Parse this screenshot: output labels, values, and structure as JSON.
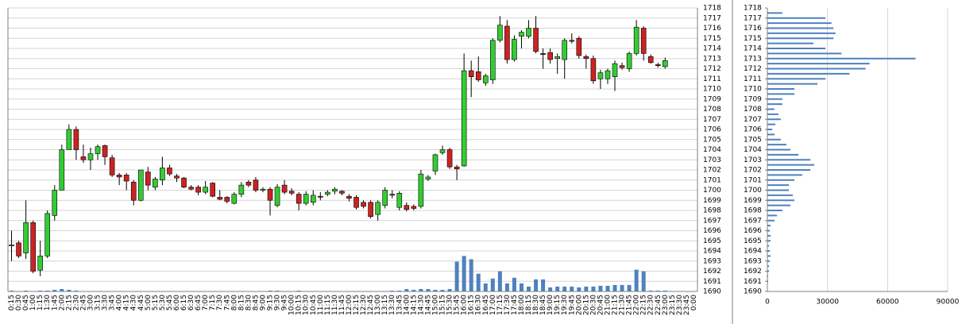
{
  "chart_data": [
    {
      "type": "candlestick",
      "categories": [
        "0:15",
        "0:30",
        "0:45",
        "1:00",
        "1:15",
        "1:30",
        "1:45",
        "2:00",
        "2:15",
        "2:30",
        "2:45",
        "3:00",
        "3:15",
        "3:30",
        "3:45",
        "4:00",
        "4:15",
        "4:30",
        "4:45",
        "5:00",
        "5:15",
        "5:30",
        "5:45",
        "6:00",
        "6:15",
        "6:30",
        "6:45",
        "7:00",
        "7:15",
        "7:30",
        "7:45",
        "8:00",
        "8:15",
        "8:30",
        "8:45",
        "9:00",
        "9:15",
        "9:30",
        "9:45",
        "10:00",
        "10:15",
        "10:30",
        "10:45",
        "11:00",
        "11:15",
        "11:30",
        "11:45",
        "12:00",
        "12:15",
        "12:30",
        "12:45",
        "13:00",
        "13:15",
        "13:30",
        "13:45",
        "14:00",
        "14:15",
        "14:30",
        "14:45",
        "15:00",
        "15:15",
        "15:30",
        "15:45",
        "16:00",
        "16:15",
        "16:30",
        "16:45",
        "17:00",
        "17:15",
        "17:30",
        "17:45",
        "18:00",
        "18:15",
        "18:30",
        "18:45",
        "19:00",
        "19:15",
        "19:30",
        "19:45",
        "20:00",
        "20:15",
        "20:30",
        "20:45",
        "21:00",
        "21:15",
        "21:30",
        "21:45",
        "22:00",
        "22:15",
        "22:30",
        "22:45",
        "23:00",
        "23:15",
        "23:30",
        "23:45",
        "0:00"
      ],
      "open": [
        1694.5,
        1694.8,
        1693.8,
        1696.8,
        1692.1,
        1693.5,
        1697.5,
        1700,
        1704,
        1706,
        1703.3,
        1703,
        1703.6,
        1704.4,
        1703.2,
        1701.5,
        1701.5,
        1700.8,
        1699,
        1701.8,
        1700.3,
        1701,
        1702.2,
        1701.4,
        1701.2,
        1700.3,
        1700.3,
        1699.8,
        1700.7,
        1699.3,
        1699.3,
        1698.7,
        1699.6,
        1700.8,
        1701,
        1700,
        1700.1,
        1698.5,
        1700.5,
        1699.9,
        1699.6,
        1698.7,
        1698.8,
        1699.4,
        1699.6,
        1699.9,
        1699.9,
        1699.4,
        1699.3,
        1698.8,
        1698.8,
        1697.6,
        1698.5,
        1699.6,
        1698.3,
        1698.5,
        1698.4,
        1698.4,
        1701.1,
        1701.9,
        1703.7,
        1704,
        1702.3,
        1702.4,
        1711.8,
        1711.7,
        1710.6,
        1710.9,
        1714.8,
        1716.2,
        1712.9,
        1715.2,
        1715.2,
        1716,
        1713.5,
        1713.6,
        1713,
        1712.9,
        1714.8,
        1715,
        1713.2,
        1713,
        1711,
        1711,
        1711.2,
        1712.3,
        1712,
        1713.5,
        1716,
        1713.2,
        1712.4,
        1712.2,
        null,
        null,
        null,
        null
      ],
      "high": [
        1696,
        1695,
        1699,
        1697,
        1695,
        1698,
        1700.5,
        1704.5,
        1706.5,
        1706.3,
        1704.5,
        1704.2,
        1704.5,
        1704.5,
        1703.5,
        1701.7,
        1701.7,
        1701,
        1702,
        1702.3,
        1701.3,
        1703.3,
        1702.5,
        1701.6,
        1701.3,
        1700.5,
        1700.5,
        1700.9,
        1700.8,
        1700,
        1699.4,
        1699.8,
        1700.8,
        1701,
        1701.3,
        1700.3,
        1700.3,
        1700.6,
        1701,
        1700.2,
        1699.8,
        1699.9,
        1700,
        1699.8,
        1700,
        1700.3,
        1700,
        1699.6,
        1699.5,
        1699,
        1699,
        1699,
        1700.3,
        1700,
        1699.9,
        1698.8,
        1698.6,
        1702,
        1701.5,
        1703.6,
        1704.4,
        1704.2,
        1702.5,
        1713.5,
        1712.8,
        1713.2,
        1711.5,
        1715,
        1717.2,
        1716.8,
        1715.3,
        1715.8,
        1716.8,
        1717.2,
        1714,
        1714,
        1713.5,
        1715,
        1715.5,
        1715.2,
        1713.4,
        1713.3,
        1711.9,
        1712,
        1712.8,
        1712.6,
        1713.7,
        1716.8,
        1716.2,
        1713.4,
        1712.6,
        1713.1,
        null,
        null,
        null,
        null
      ],
      "low": [
        1693,
        1693.3,
        1693.2,
        1691.8,
        1691.5,
        1693.3,
        1697,
        1700,
        1704,
        1703,
        1702.7,
        1702,
        1703,
        1702.5,
        1701.3,
        1700.5,
        1700,
        1698.5,
        1698.9,
        1700,
        1700,
        1700.5,
        1701.4,
        1700.8,
        1700.2,
        1700,
        1699.5,
        1699.6,
        1699.3,
        1699,
        1698.7,
        1698.6,
        1699.3,
        1700.3,
        1699.8,
        1699.8,
        1697.5,
        1698.3,
        1699.6,
        1699.5,
        1698,
        1698.5,
        1698.5,
        1699,
        1699.4,
        1699.6,
        1699.5,
        1698.9,
        1698.1,
        1698.2,
        1697.2,
        1697,
        1698.2,
        1699.2,
        1698,
        1697.9,
        1698,
        1698.2,
        1700.9,
        1701.5,
        1703.5,
        1702.1,
        1701,
        1702.3,
        1709.2,
        1710.7,
        1710.3,
        1710.5,
        1714.6,
        1712.5,
        1712.7,
        1714,
        1715,
        1713.5,
        1712,
        1712.5,
        1711.5,
        1711,
        1714.5,
        1713,
        1712,
        1710.5,
        1710,
        1710.5,
        1709.8,
        1711.9,
        1711.7,
        1713.3,
        1712.8,
        1712.5,
        1712.1,
        1712,
        null,
        null,
        null,
        null
      ],
      "close": [
        1694.6,
        1693.5,
        1696.8,
        1692,
        1693.5,
        1697.7,
        1700,
        1704,
        1706,
        1704,
        1703,
        1703.6,
        1704.3,
        1703.3,
        1701.5,
        1701.3,
        1700.9,
        1699,
        1702,
        1700.5,
        1701.1,
        1702.2,
        1701.6,
        1701.2,
        1700.3,
        1700.1,
        1699.8,
        1700.3,
        1699.4,
        1699.1,
        1698.9,
        1699.6,
        1700.5,
        1700.5,
        1700,
        1700.1,
        1699,
        1700.3,
        1699.8,
        1699.7,
        1698.7,
        1699.6,
        1699.5,
        1699.3,
        1699.8,
        1700.1,
        1699.7,
        1699.2,
        1698.3,
        1698.4,
        1697.4,
        1698.8,
        1700,
        1699.5,
        1699.7,
        1698.1,
        1698.2,
        1701.6,
        1701.3,
        1703.5,
        1704,
        1702.3,
        1702.1,
        1711.8,
        1711.2,
        1710.9,
        1711.3,
        1714.8,
        1716.3,
        1712.9,
        1714.9,
        1715.6,
        1716,
        1713.7,
        1713.4,
        1712.9,
        1713.2,
        1714.8,
        1714.7,
        1713.3,
        1713,
        1710.8,
        1711.6,
        1711.8,
        1712.5,
        1712.1,
        1713.5,
        1716.1,
        1713.5,
        1712.6,
        1712.3,
        1712.8,
        null,
        null,
        null,
        null
      ],
      "volume": [
        1,
        0,
        1,
        0,
        1,
        1,
        2,
        3,
        2,
        1,
        0,
        0,
        0,
        0,
        0,
        0,
        0,
        0,
        0,
        0,
        0,
        0,
        0,
        0,
        0,
        0,
        0,
        0,
        0,
        0,
        0,
        0,
        0,
        0,
        0,
        0,
        1,
        1,
        0,
        0,
        1,
        0,
        0,
        0,
        0,
        0,
        0,
        0,
        0,
        0,
        0,
        0,
        0,
        1,
        1,
        3,
        2,
        3,
        3,
        2,
        2,
        3,
        37,
        44,
        40,
        22,
        10,
        16,
        25,
        10,
        17,
        10,
        6,
        15,
        15,
        5,
        6,
        6,
        6,
        5,
        6,
        6,
        7,
        7,
        8,
        8,
        8,
        27,
        25,
        1,
        1,
        1,
        0,
        0,
        0,
        0
      ],
      "ylim": [
        1690,
        1718
      ],
      "yticks": [
        1690,
        1691,
        1692,
        1693,
        1694,
        1695,
        1696,
        1697,
        1698,
        1699,
        1700,
        1701,
        1702,
        1703,
        1704,
        1705,
        1706,
        1707,
        1708,
        1709,
        1710,
        1711,
        1712,
        1713,
        1714,
        1715,
        1716,
        1717,
        1718
      ],
      "up_color": "#33cc33",
      "down_color": "#cc2222",
      "volume_color": "#4f81bd",
      "grid": true
    },
    {
      "type": "barh",
      "y": [
        1691,
        1691.5,
        1692,
        1692.5,
        1693,
        1693.5,
        1694,
        1694.5,
        1695,
        1695.5,
        1696,
        1696.5,
        1697,
        1697.5,
        1698,
        1698.5,
        1699,
        1699.5,
        1700,
        1700.5,
        1701,
        1701.5,
        1702,
        1702.5,
        1703,
        1703.5,
        1704,
        1704.5,
        1705,
        1705.5,
        1706,
        1706.5,
        1707,
        1707.5,
        1708,
        1708.5,
        1709,
        1709.5,
        1710,
        1710.5,
        1711,
        1711.5,
        1712,
        1712.5,
        1713,
        1713.5,
        1714,
        1714.5,
        1715,
        1715.5,
        1716,
        1716.5,
        1717,
        1717.5
      ],
      "values": [
        400,
        400,
        800,
        800,
        1200,
        1600,
        1200,
        800,
        1600,
        1600,
        1200,
        1600,
        3600,
        4800,
        7500,
        11500,
        13500,
        12700,
        10700,
        10700,
        13500,
        17400,
        21500,
        23400,
        21500,
        15500,
        11500,
        9500,
        6700,
        3600,
        2400,
        4000,
        6700,
        5500,
        3500,
        7500,
        7500,
        13500,
        13500,
        25000,
        29000,
        41000,
        49000,
        51000,
        74000,
        37000,
        29000,
        23000,
        33000,
        34000,
        33000,
        32000,
        29000,
        7500
      ],
      "color": "#4f81bd",
      "xlim": [
        0,
        90000
      ],
      "xticks": [
        0,
        30000,
        60000,
        90000
      ],
      "ylim": [
        1690,
        1718
      ],
      "yticks": [
        1690,
        1691,
        1692,
        1693,
        1694,
        1695,
        1696,
        1697,
        1698,
        1699,
        1700,
        1701,
        1702,
        1703,
        1704,
        1705,
        1706,
        1707,
        1708,
        1709,
        1710,
        1711,
        1712,
        1713,
        1714,
        1715,
        1716,
        1717,
        1718
      ],
      "grid": true
    }
  ]
}
